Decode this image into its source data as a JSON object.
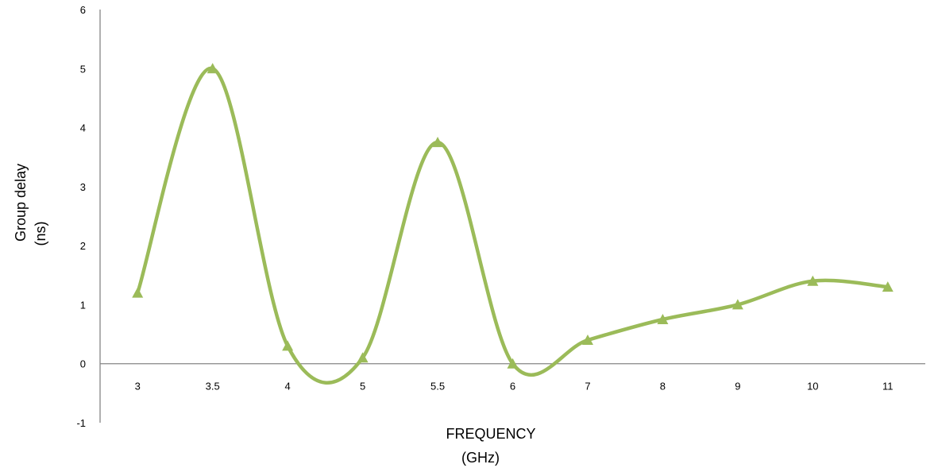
{
  "chart_data": {
    "type": "line",
    "title": "",
    "ylabel": [
      "Group delay",
      "(ns)"
    ],
    "xlabel": [
      "FREQUENCY",
      "(GHz)"
    ],
    "categories": [
      "3",
      "3.5",
      "4",
      "5",
      "5.5",
      "6",
      "7",
      "8",
      "9",
      "10",
      "11"
    ],
    "ylim": [
      -1,
      6
    ],
    "yticks": [
      "-1",
      "0",
      "1",
      "2",
      "3",
      "4",
      "5",
      "6"
    ],
    "grid": false,
    "smooth": true,
    "marker": "triangle",
    "series": [
      {
        "color": "#9bbb59",
        "values": [
          1.2,
          5.0,
          0.3,
          0.1,
          3.75,
          0.0,
          0.4,
          0.75,
          1.0,
          1.4,
          1.3
        ]
      }
    ]
  }
}
